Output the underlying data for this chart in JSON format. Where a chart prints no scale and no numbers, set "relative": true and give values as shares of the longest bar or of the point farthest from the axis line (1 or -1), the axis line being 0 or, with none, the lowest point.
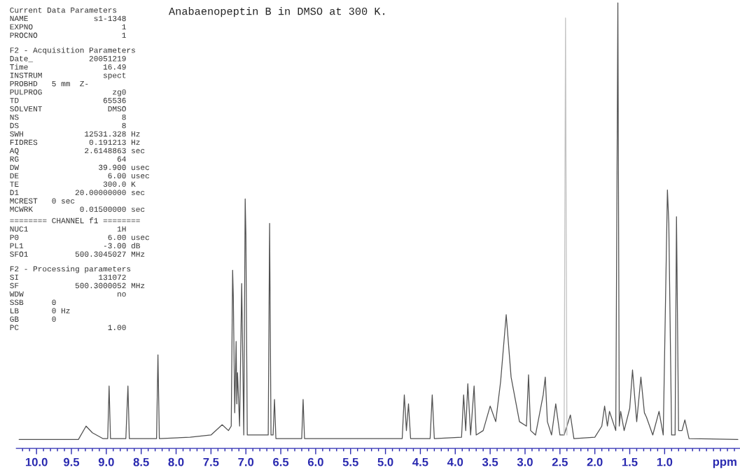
{
  "chart_data": {
    "type": "line",
    "title": "Anabaenopeptin B in DMSO at 300 K.",
    "xlabel": "ppm",
    "relative": true,
    "tick_labels": "x",
    "grid": false,
    "legend": false,
    "marker": "none",
    "line_style": "solid",
    "xlim": [
      10.29,
      -0.08
    ],
    "xticks": [
      {
        "value": 10.2,
        "label": null
      },
      {
        "value": 10.1,
        "label": null
      },
      {
        "value": 10.0,
        "label": "10.0"
      },
      {
        "value": 9.9,
        "label": null
      },
      {
        "value": 9.8,
        "label": null
      },
      {
        "value": 9.7,
        "label": null
      },
      {
        "value": 9.6,
        "label": null
      },
      {
        "value": 9.5,
        "label": "9.5"
      },
      {
        "value": 9.4,
        "label": null
      },
      {
        "value": 9.3,
        "label": null
      },
      {
        "value": 9.2,
        "label": null
      },
      {
        "value": 9.1,
        "label": null
      },
      {
        "value": 9.0,
        "label": "9.0"
      },
      {
        "value": 8.9,
        "label": null
      },
      {
        "value": 8.8,
        "label": null
      },
      {
        "value": 8.7,
        "label": null
      },
      {
        "value": 8.6,
        "label": null
      },
      {
        "value": 8.5,
        "label": "8.5"
      },
      {
        "value": 8.4,
        "label": null
      },
      {
        "value": 8.3,
        "label": null
      },
      {
        "value": 8.2,
        "label": null
      },
      {
        "value": 8.1,
        "label": null
      },
      {
        "value": 8.0,
        "label": "8.0"
      },
      {
        "value": 7.9,
        "label": null
      },
      {
        "value": 7.8,
        "label": null
      },
      {
        "value": 7.7,
        "label": null
      },
      {
        "value": 7.6,
        "label": null
      },
      {
        "value": 7.5,
        "label": "7.5"
      },
      {
        "value": 7.4,
        "label": null
      },
      {
        "value": 7.3,
        "label": null
      },
      {
        "value": 7.2,
        "label": null
      },
      {
        "value": 7.1,
        "label": null
      },
      {
        "value": 7.0,
        "label": "7.0"
      },
      {
        "value": 6.9,
        "label": null
      },
      {
        "value": 6.8,
        "label": null
      },
      {
        "value": 6.7,
        "label": null
      },
      {
        "value": 6.6,
        "label": null
      },
      {
        "value": 6.5,
        "label": "6.5"
      },
      {
        "value": 6.4,
        "label": null
      },
      {
        "value": 6.3,
        "label": null
      },
      {
        "value": 6.2,
        "label": null
      },
      {
        "value": 6.1,
        "label": null
      },
      {
        "value": 6.0,
        "label": "6.0"
      },
      {
        "value": 5.9,
        "label": null
      },
      {
        "value": 5.8,
        "label": null
      },
      {
        "value": 5.7,
        "label": null
      },
      {
        "value": 5.6,
        "label": null
      },
      {
        "value": 5.5,
        "label": "5.5"
      },
      {
        "value": 5.4,
        "label": null
      },
      {
        "value": 5.3,
        "label": null
      },
      {
        "value": 5.2,
        "label": null
      },
      {
        "value": 5.1,
        "label": null
      },
      {
        "value": 5.0,
        "label": "5.0"
      },
      {
        "value": 4.9,
        "label": null
      },
      {
        "value": 4.8,
        "label": null
      },
      {
        "value": 4.7,
        "label": null
      },
      {
        "value": 4.6,
        "label": null
      },
      {
        "value": 4.5,
        "label": "4.5"
      },
      {
        "value": 4.4,
        "label": null
      },
      {
        "value": 4.3,
        "label": null
      },
      {
        "value": 4.2,
        "label": null
      },
      {
        "value": 4.1,
        "label": null
      },
      {
        "value": 4.0,
        "label": "4.0"
      },
      {
        "value": 3.9,
        "label": null
      },
      {
        "value": 3.8,
        "label": null
      },
      {
        "value": 3.7,
        "label": null
      },
      {
        "value": 3.6,
        "label": null
      },
      {
        "value": 3.5,
        "label": "3.5"
      },
      {
        "value": 3.4,
        "label": null
      },
      {
        "value": 3.3,
        "label": null
      },
      {
        "value": 3.2,
        "label": null
      },
      {
        "value": 3.1,
        "label": null
      },
      {
        "value": 3.0,
        "label": "3.0"
      },
      {
        "value": 2.9,
        "label": null
      },
      {
        "value": 2.8,
        "label": null
      },
      {
        "value": 2.7,
        "label": null
      },
      {
        "value": 2.6,
        "label": null
      },
      {
        "value": 2.5,
        "label": "2.5"
      },
      {
        "value": 2.4,
        "label": null
      },
      {
        "value": 2.3,
        "label": null
      },
      {
        "value": 2.2,
        "label": null
      },
      {
        "value": 2.1,
        "label": null
      },
      {
        "value": 2.0,
        "label": "2.0"
      },
      {
        "value": 1.9,
        "label": null
      },
      {
        "value": 1.8,
        "label": null
      },
      {
        "value": 1.7,
        "label": null
      },
      {
        "value": 1.6,
        "label": null
      },
      {
        "value": 1.5,
        "label": "1.5"
      },
      {
        "value": 1.4,
        "label": null
      },
      {
        "value": 1.3,
        "label": null
      },
      {
        "value": 1.2,
        "label": null
      },
      {
        "value": 1.1,
        "label": null
      },
      {
        "value": 1.0,
        "label": "1.0"
      },
      {
        "value": 0.9,
        "label": null
      },
      {
        "value": 0.8,
        "label": null
      },
      {
        "value": 0.7,
        "label": null
      },
      {
        "value": 0.6,
        "label": null
      },
      {
        "value": 0.5,
        "label": null
      },
      {
        "value": 0.4,
        "label": null
      },
      {
        "value": 0.3,
        "label": null
      },
      {
        "value": 0.2,
        "label": null
      },
      {
        "value": 0.1,
        "label": null
      },
      {
        "value": 0.0,
        "label": null
      }
    ],
    "series": [
      {
        "color": "#505050",
        "x": [
          10.25,
          9.4,
          9.29,
          9.2,
          9.05,
          8.98,
          8.96,
          8.94,
          8.72,
          8.69,
          8.67,
          8.28,
          8.26,
          8.24,
          7.8,
          7.5,
          7.34,
          7.25,
          7.21,
          7.19,
          7.18,
          7.16,
          7.14,
          7.13,
          7.12,
          7.09,
          7.06,
          7.03,
          7.01,
          7.0,
          6.98,
          6.68,
          6.66,
          6.64,
          6.61,
          6.59,
          6.57,
          6.2,
          6.18,
          6.16,
          4.76,
          4.73,
          4.7,
          4.67,
          4.64,
          4.36,
          4.33,
          4.3,
          3.91,
          3.88,
          3.85,
          3.82,
          3.78,
          3.73,
          3.7,
          3.6,
          3.5,
          3.42,
          3.35,
          3.27,
          3.2,
          3.08,
          2.98,
          2.95,
          2.92,
          2.85,
          2.74,
          2.71,
          2.68,
          2.62,
          2.56,
          2.5,
          2.44,
          2.35,
          2.3,
          2.0,
          1.9,
          1.86,
          1.82,
          1.79,
          1.7,
          1.67,
          1.65,
          1.63,
          1.58,
          1.5,
          1.46,
          1.4,
          1.34,
          1.29,
          1.26,
          1.17,
          1.08,
          1.02,
          0.96,
          0.94,
          0.9,
          0.85,
          0.83,
          0.8,
          0.75,
          0.71,
          0.65,
          -0.05
        ],
        "values": [
          0.02,
          0.02,
          0.05,
          0.035,
          0.022,
          0.022,
          0.14,
          0.022,
          0.022,
          0.14,
          0.022,
          0.022,
          0.21,
          0.022,
          0.025,
          0.03,
          0.053,
          0.04,
          0.05,
          0.4,
          0.34,
          0.08,
          0.24,
          0.1,
          0.17,
          0.05,
          0.37,
          0.03,
          0.56,
          0.48,
          0.03,
          0.03,
          0.505,
          0.03,
          0.03,
          0.11,
          0.022,
          0.022,
          0.11,
          0.022,
          0.022,
          0.12,
          0.04,
          0.1,
          0.022,
          0.022,
          0.12,
          0.022,
          0.025,
          0.12,
          0.04,
          0.145,
          0.03,
          0.14,
          0.03,
          0.04,
          0.095,
          0.06,
          0.15,
          0.3,
          0.16,
          0.06,
          0.05,
          0.165,
          0.04,
          0.03,
          0.12,
          0.16,
          0.06,
          0.03,
          0.1,
          0.03,
          0.03,
          0.075,
          0.022,
          0.025,
          0.05,
          0.095,
          0.05,
          0.083,
          0.04,
          1.0,
          0.05,
          0.083,
          0.04,
          0.09,
          0.176,
          0.06,
          0.16,
          0.08,
          0.07,
          0.03,
          0.083,
          0.03,
          0.58,
          0.505,
          0.03,
          0.03,
          0.52,
          0.04,
          0.04,
          0.064,
          0.022,
          0.02
        ]
      },
      {
        "color": "#c0c0c0",
        "x": [
          2.44,
          2.42,
          2.4
        ],
        "values": [
          0.03,
          0.966,
          0.03
        ]
      }
    ],
    "annotations": [
      "Current Data Parameters\nNAME              s1-1348\nEXPNO                   1\nPROCNO                  1",
      "F2 - Acquisition Parameters\nDate_            20051219\nTime                16.49\nINSTRUM             spect\nPROBHD   5 mm  Z-\nPULPROG               zg0\nTD                  65536\nSOLVENT              DMSO\nNS                      8\nDS                      8\nSWH             12531.328 Hz\nFIDRES           0.191213 Hz\nAQ              2.6148863 sec\nRG                     64\nDW                 39.900 usec\nDE                   6.00 usec\nTE                  300.0 K\nD1            20.00000000 sec\nMCREST   0 sec\nMCWRK          0.01500000 sec",
      "======== CHANNEL f1 ========\nNUC1                   1H\nP0                   6.00 usec\nPL1                 -3.00 dB\nSFO1          500.3045027 MHz",
      "F2 - Processing parameters\nSI                 131072\nSF            500.3000052 MHz\nWDW                    no\nSSB      0\nLB       0 Hz\nGB       0\nPC                   1.00"
    ]
  }
}
